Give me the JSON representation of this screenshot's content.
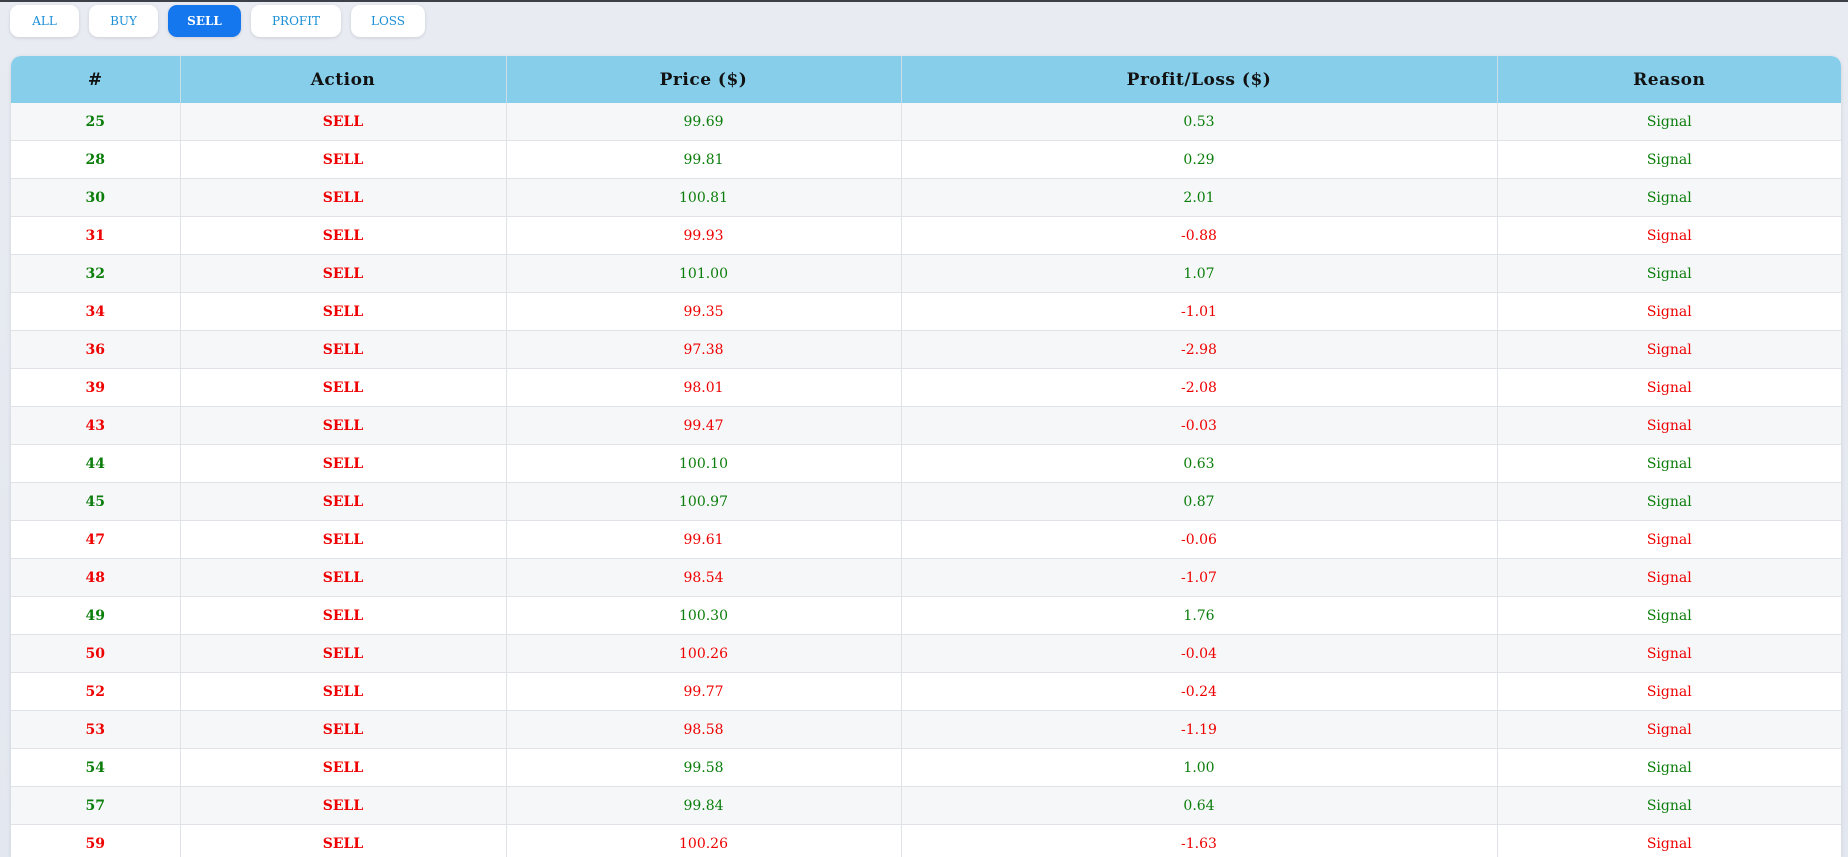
{
  "filters": [
    {
      "label": "ALL",
      "active": false
    },
    {
      "label": "BUY",
      "active": false
    },
    {
      "label": "SELL",
      "active": true
    },
    {
      "label": "PROFIT",
      "active": false
    },
    {
      "label": "LOSS",
      "active": false
    }
  ],
  "colors": {
    "header_bg": "#87ceeb",
    "active_filter": "#1477ee",
    "profit": "#0a7d0a",
    "loss": "#ee0000"
  },
  "table": {
    "columns": [
      "#",
      "Action",
      "Price ($)",
      "Profit/Loss ($)",
      "Reason"
    ],
    "rows": [
      {
        "id": "25",
        "action": "SELL",
        "price": "99.69",
        "pl": "0.53",
        "reason": "Signal",
        "profit": true
      },
      {
        "id": "28",
        "action": "SELL",
        "price": "99.81",
        "pl": "0.29",
        "reason": "Signal",
        "profit": true
      },
      {
        "id": "30",
        "action": "SELL",
        "price": "100.81",
        "pl": "2.01",
        "reason": "Signal",
        "profit": true
      },
      {
        "id": "31",
        "action": "SELL",
        "price": "99.93",
        "pl": "-0.88",
        "reason": "Signal",
        "profit": false
      },
      {
        "id": "32",
        "action": "SELL",
        "price": "101.00",
        "pl": "1.07",
        "reason": "Signal",
        "profit": true
      },
      {
        "id": "34",
        "action": "SELL",
        "price": "99.35",
        "pl": "-1.01",
        "reason": "Signal",
        "profit": false
      },
      {
        "id": "36",
        "action": "SELL",
        "price": "97.38",
        "pl": "-2.98",
        "reason": "Signal",
        "profit": false
      },
      {
        "id": "39",
        "action": "SELL",
        "price": "98.01",
        "pl": "-2.08",
        "reason": "Signal",
        "profit": false
      },
      {
        "id": "43",
        "action": "SELL",
        "price": "99.47",
        "pl": "-0.03",
        "reason": "Signal",
        "profit": false
      },
      {
        "id": "44",
        "action": "SELL",
        "price": "100.10",
        "pl": "0.63",
        "reason": "Signal",
        "profit": true
      },
      {
        "id": "45",
        "action": "SELL",
        "price": "100.97",
        "pl": "0.87",
        "reason": "Signal",
        "profit": true
      },
      {
        "id": "47",
        "action": "SELL",
        "price": "99.61",
        "pl": "-0.06",
        "reason": "Signal",
        "profit": false
      },
      {
        "id": "48",
        "action": "SELL",
        "price": "98.54",
        "pl": "-1.07",
        "reason": "Signal",
        "profit": false
      },
      {
        "id": "49",
        "action": "SELL",
        "price": "100.30",
        "pl": "1.76",
        "reason": "Signal",
        "profit": true
      },
      {
        "id": "50",
        "action": "SELL",
        "price": "100.26",
        "pl": "-0.04",
        "reason": "Signal",
        "profit": false
      },
      {
        "id": "52",
        "action": "SELL",
        "price": "99.77",
        "pl": "-0.24",
        "reason": "Signal",
        "profit": false
      },
      {
        "id": "53",
        "action": "SELL",
        "price": "98.58",
        "pl": "-1.19",
        "reason": "Signal",
        "profit": false
      },
      {
        "id": "54",
        "action": "SELL",
        "price": "99.58",
        "pl": "1.00",
        "reason": "Signal",
        "profit": true
      },
      {
        "id": "57",
        "action": "SELL",
        "price": "99.84",
        "pl": "0.64",
        "reason": "Signal",
        "profit": true
      },
      {
        "id": "59",
        "action": "SELL",
        "price": "100.26",
        "pl": "-1.63",
        "reason": "Signal",
        "profit": false
      }
    ]
  }
}
